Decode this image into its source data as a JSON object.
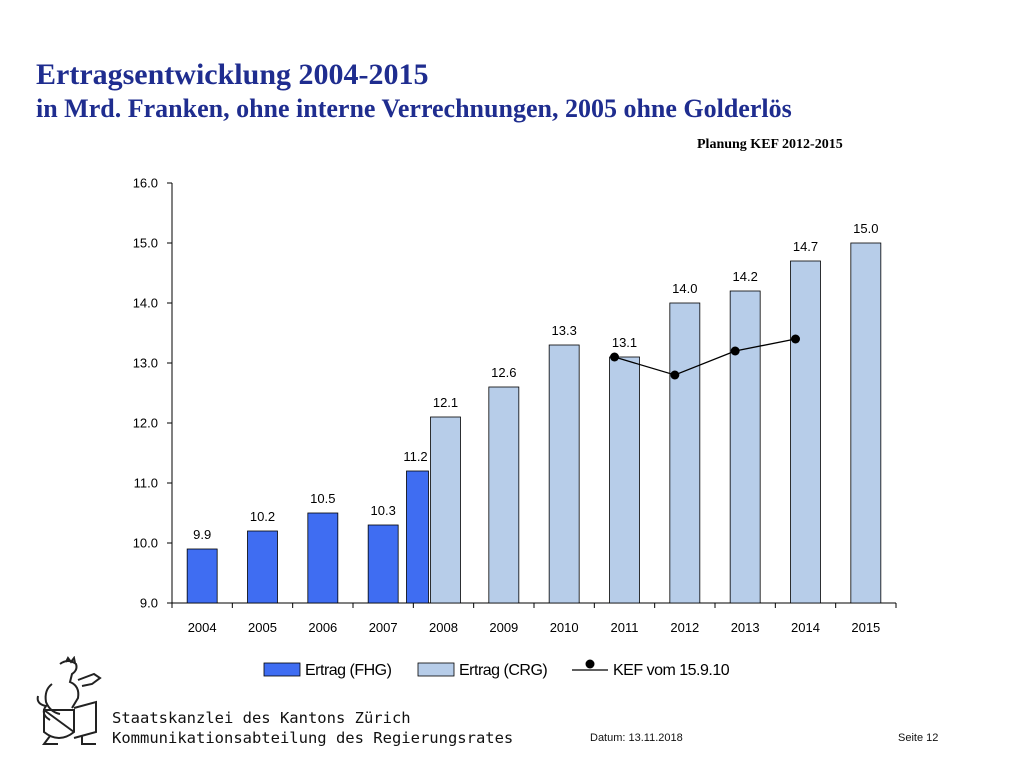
{
  "slide": {
    "title": "Ertragsentwicklung 2004-2015",
    "subtitle": "in Mrd. Franken, ohne interne Verrechnungen, 2005 ohne Golderlös",
    "planung_label": "Planung KEF 2012-2015"
  },
  "colors": {
    "fhg": "#3f6df2",
    "crg": "#b7cde9",
    "line": "#000000"
  },
  "chart_data": {
    "type": "bar",
    "categories": [
      "2004",
      "2005",
      "2006",
      "2007",
      "2008",
      "2009",
      "2010",
      "2011",
      "2012",
      "2013",
      "2014",
      "2015"
    ],
    "series": [
      {
        "name": "Ertrag (FHG)",
        "values": [
          9.9,
          10.2,
          10.5,
          10.3,
          11.2,
          null,
          null,
          null,
          null,
          null,
          null,
          null
        ]
      },
      {
        "name": "Ertrag (CRG)",
        "values": [
          null,
          null,
          null,
          null,
          12.1,
          12.6,
          13.3,
          13.1,
          14.0,
          14.2,
          14.7,
          15.0
        ]
      },
      {
        "name": "KEF vom 15.9.10",
        "type": "line",
        "values": [
          null,
          null,
          null,
          null,
          null,
          null,
          null,
          13.1,
          12.8,
          13.2,
          13.4,
          null
        ]
      }
    ],
    "data_labels": [
      "9.9",
      "10.2",
      "10.5",
      "10.3",
      "11.2",
      "12.1",
      "12.6",
      "13.3",
      "13.1",
      "14.0",
      "14.2",
      "14.7",
      "15.0"
    ],
    "yticks": [
      "9.0",
      "10.0",
      "11.0",
      "12.0",
      "13.0",
      "14.0",
      "15.0",
      "16.0"
    ],
    "ylim": [
      9,
      16
    ],
    "legend_position": "bottom",
    "grid": false
  },
  "footer": {
    "org_line1": "Staatskanzlei des Kantons Zürich",
    "org_line2": "Kommunikationsabteilung des Regierungsrates",
    "date": "Datum: 13.11.2018",
    "page": "Seite 12"
  },
  "logo_icon": "zurich-lion-coat-of-arms-icon"
}
